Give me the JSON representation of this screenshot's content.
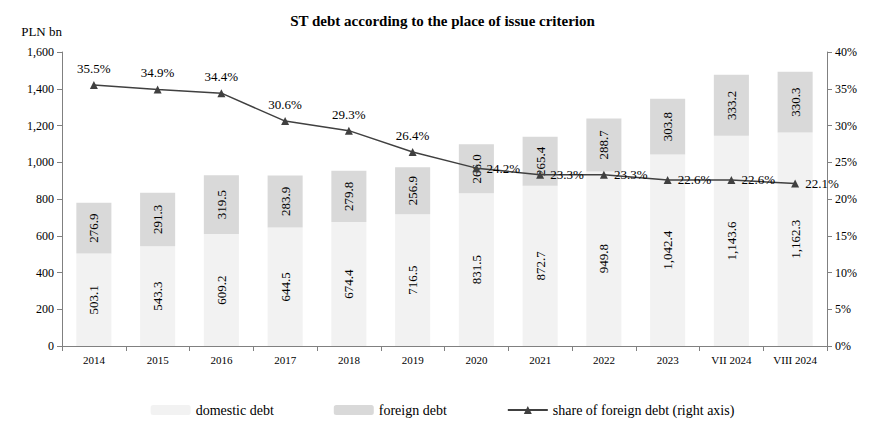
{
  "chart_data": {
    "type": "bar",
    "title": "ST debt according to the place of issue criterion",
    "y_label": "PLN bn",
    "categories": [
      "2014",
      "2015",
      "2016",
      "2017",
      "2018",
      "2019",
      "2020",
      "2021",
      "2022",
      "2023",
      "VII 2024",
      "VIII 2024"
    ],
    "series": [
      {
        "name": "domestic debt",
        "type": "bar",
        "color": "#f2f2f2",
        "values": [
          503.1,
          543.3,
          609.2,
          644.5,
          674.4,
          716.5,
          831.5,
          872.7,
          949.8,
          1042.4,
          1143.6,
          1162.3
        ],
        "value_labels": [
          "503.1",
          "543.3",
          "609.2",
          "644.5",
          "674.4",
          "716.5",
          "831.5",
          "872.7",
          "949.8",
          "1,042.4",
          "1,143.6",
          "1,162.3"
        ]
      },
      {
        "name": "foreign debt",
        "type": "bar",
        "color": "#d9d9d9",
        "values": [
          276.9,
          291.3,
          319.5,
          283.9,
          279.8,
          256.9,
          266.0,
          265.4,
          288.7,
          303.8,
          333.2,
          330.3
        ],
        "value_labels": [
          "276.9",
          "291.3",
          "319.5",
          "283.9",
          "279.8",
          "256.9",
          "266.0",
          "265.4",
          "288.7",
          "303.8",
          "333.2",
          "330.3"
        ]
      },
      {
        "name": "share of foreign debt (right axis)",
        "type": "line",
        "axis": "y2",
        "color": "#404040",
        "marker": "triangle",
        "values": [
          35.5,
          34.9,
          34.4,
          30.6,
          29.3,
          26.4,
          24.2,
          23.3,
          23.3,
          22.6,
          22.6,
          22.1
        ],
        "value_labels": [
          "35.5%",
          "34.9%",
          "34.4%",
          "30.6%",
          "29.3%",
          "26.4%",
          "24.2%",
          "23.3%",
          "23.3%",
          "22.6%",
          "22.6%",
          "22.1%"
        ]
      }
    ],
    "ylim": [
      0,
      1600
    ],
    "yticks": [
      0,
      200,
      400,
      600,
      800,
      {
        "value": 1000,
        "label": "1,000"
      },
      {
        "value": 1200,
        "label": "1,200"
      },
      {
        "value": 1400,
        "label": "1,400"
      },
      {
        "value": 1600,
        "label": "1,600"
      }
    ],
    "y2lim": [
      0,
      40
    ],
    "y2ticks": [
      {
        "value": 0,
        "label": "0%"
      },
      {
        "value": 5,
        "label": "5%"
      },
      {
        "value": 10,
        "label": "10%"
      },
      {
        "value": 15,
        "label": "15%"
      },
      {
        "value": 20,
        "label": "20%"
      },
      {
        "value": 25,
        "label": "25%"
      },
      {
        "value": 30,
        "label": "30%"
      },
      {
        "value": 35,
        "label": "35%"
      },
      {
        "value": 40,
        "label": "40%"
      }
    ],
    "stacked": true,
    "data_labels": true,
    "grid": false,
    "legend": "bottom"
  }
}
